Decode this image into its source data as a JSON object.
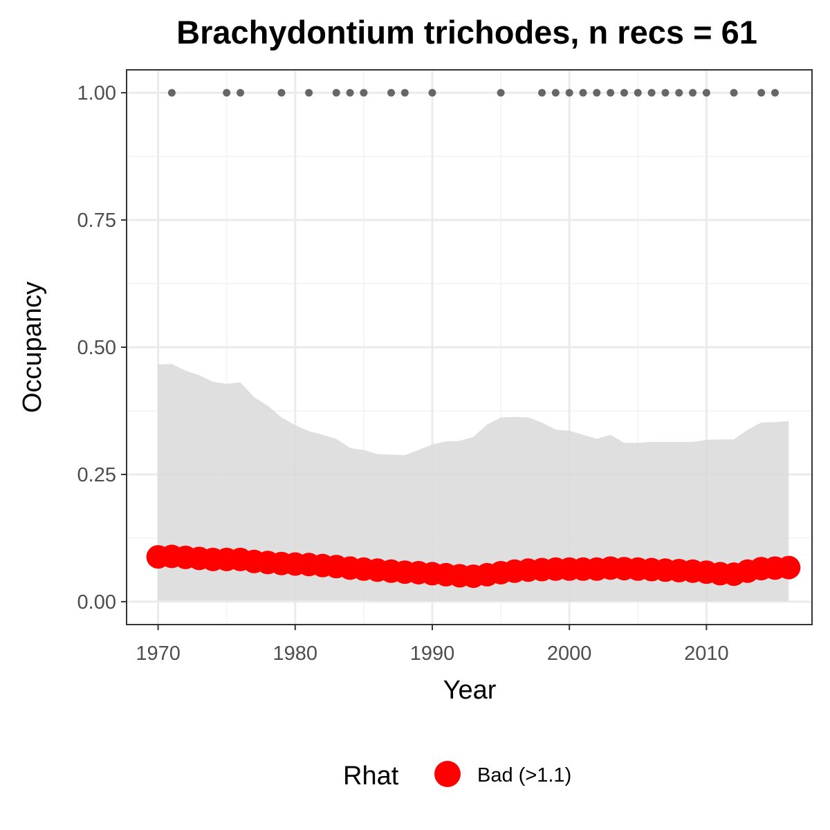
{
  "chart_data": {
    "type": "line",
    "title": "Brachydontium trichodes, n recs = 61",
    "xlabel": "Year",
    "ylabel": "Occupancy",
    "xlim": [
      1967.7,
      2017.7
    ],
    "ylim": [
      -0.045,
      1.045
    ],
    "x_ticks": [
      1970,
      1980,
      1990,
      2000,
      2010
    ],
    "x_tick_labels": [
      "1970",
      "1980",
      "1990",
      "2000",
      "2010"
    ],
    "y_ticks": [
      0,
      0.25,
      0.5,
      0.75,
      1.0
    ],
    "y_tick_labels": [
      "0.00",
      "0.25",
      "0.50",
      "0.75",
      "1.00"
    ],
    "grid": true,
    "legend": {
      "position": "bottom",
      "title": "Rhat",
      "entries": [
        {
          "label": "Bad (>1.1)",
          "color": "#ff0000"
        }
      ]
    },
    "colors": {
      "ribbon": "#d9d9d9",
      "estimate": "#ff0000",
      "records": "#666666",
      "grid_major": "#ebebeb",
      "grid_minor": "#f2f2f2",
      "panel_border": "#333333"
    },
    "series": [
      {
        "name": "Bad (>1.1)",
        "type": "points-line",
        "x": [
          1970,
          1971,
          1972,
          1973,
          1974,
          1975,
          1976,
          1977,
          1978,
          1979,
          1980,
          1981,
          1982,
          1983,
          1984,
          1985,
          1986,
          1987,
          1988,
          1989,
          1990,
          1991,
          1992,
          1993,
          1994,
          1995,
          1996,
          1997,
          1998,
          1999,
          2000,
          2001,
          2002,
          2003,
          2004,
          2005,
          2006,
          2007,
          2008,
          2009,
          2010,
          2011,
          2012,
          2013,
          2014,
          2015,
          2016
        ],
        "y": [
          0.088,
          0.089,
          0.087,
          0.085,
          0.083,
          0.083,
          0.083,
          0.079,
          0.077,
          0.075,
          0.074,
          0.073,
          0.071,
          0.069,
          0.066,
          0.064,
          0.062,
          0.06,
          0.058,
          0.057,
          0.055,
          0.053,
          0.051,
          0.05,
          0.053,
          0.057,
          0.06,
          0.062,
          0.063,
          0.064,
          0.064,
          0.064,
          0.064,
          0.066,
          0.065,
          0.064,
          0.063,
          0.062,
          0.061,
          0.06,
          0.058,
          0.055,
          0.054,
          0.06,
          0.065,
          0.066,
          0.067
        ]
      }
    ],
    "ribbon": {
      "x": [
        1970,
        1971,
        1972,
        1973,
        1974,
        1975,
        1976,
        1977,
        1978,
        1979,
        1980,
        1981,
        1982,
        1983,
        1984,
        1985,
        1986,
        1987,
        1988,
        1989,
        1990,
        1991,
        1992,
        1993,
        1994,
        1995,
        1996,
        1997,
        1998,
        1999,
        2000,
        2001,
        2002,
        2003,
        2004,
        2005,
        2006,
        2007,
        2008,
        2009,
        2010,
        2011,
        2012,
        2013,
        2014,
        2015,
        2016
      ],
      "lower": [
        0.002,
        0.002,
        0.002,
        0.002,
        0.002,
        0.002,
        0.002,
        0.002,
        0.002,
        0.002,
        0.002,
        0.002,
        0.002,
        0.002,
        0.002,
        0.002,
        0.001,
        0.001,
        0.001,
        0.001,
        0.001,
        0.001,
        0.001,
        0.001,
        0.001,
        0.001,
        0.001,
        0.001,
        0.001,
        0.001,
        0.001,
        0.001,
        0.001,
        0.001,
        0.001,
        0.001,
        0.001,
        0.001,
        0.001,
        0.001,
        0.001,
        0.001,
        0.001,
        0.001,
        0.001,
        0.001,
        0.001
      ],
      "upper": [
        0.466,
        0.467,
        0.454,
        0.445,
        0.432,
        0.428,
        0.431,
        0.402,
        0.385,
        0.362,
        0.347,
        0.335,
        0.328,
        0.32,
        0.302,
        0.298,
        0.29,
        0.289,
        0.288,
        0.298,
        0.309,
        0.315,
        0.316,
        0.324,
        0.348,
        0.362,
        0.363,
        0.362,
        0.352,
        0.338,
        0.336,
        0.328,
        0.32,
        0.328,
        0.312,
        0.312,
        0.314,
        0.314,
        0.314,
        0.314,
        0.318,
        0.319,
        0.319,
        0.338,
        0.352,
        0.353,
        0.355
      ]
    },
    "records": {
      "x": [
        1971,
        1975,
        1976,
        1979,
        1981,
        1983,
        1984,
        1985,
        1987,
        1988,
        1990,
        1995,
        1998,
        1999,
        2000,
        2001,
        2002,
        2003,
        2004,
        2005,
        2006,
        2007,
        2008,
        2009,
        2010,
        2012,
        2014,
        2015
      ],
      "y": 1.0
    }
  }
}
